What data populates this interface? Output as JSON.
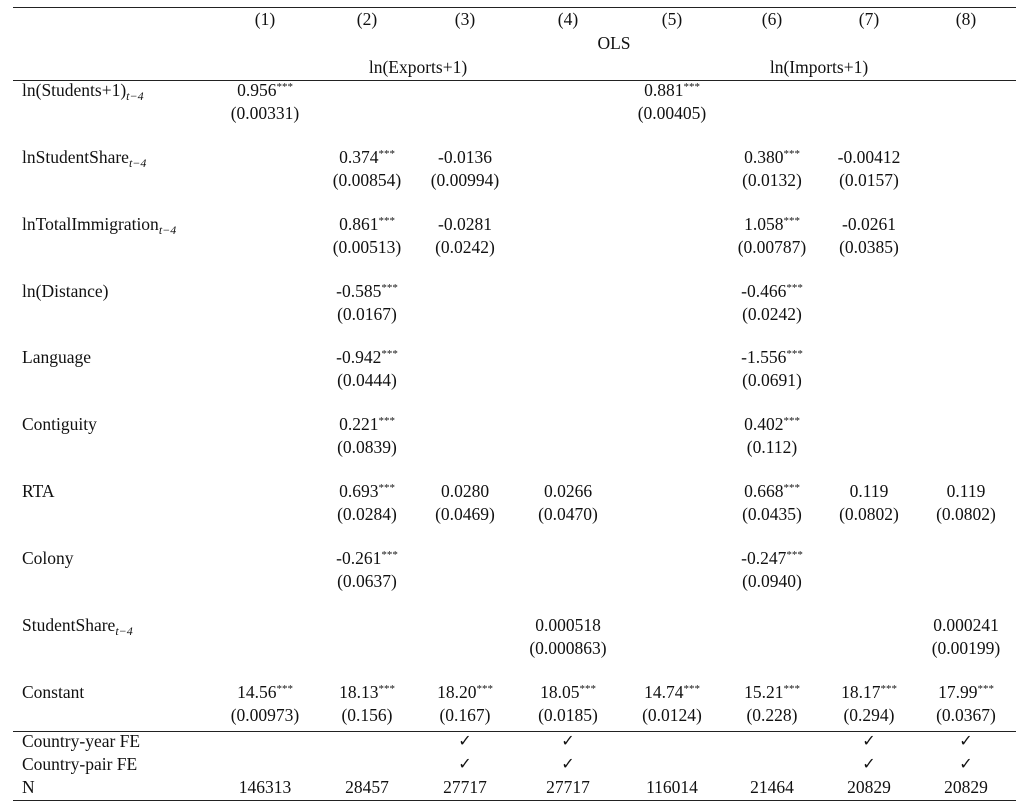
{
  "table": {
    "col_numbers": [
      "(1)",
      "(2)",
      "(3)",
      "(4)",
      "(5)",
      "(6)",
      "(7)",
      "(8)"
    ],
    "method": "OLS",
    "dep_exports": "ln(Exports+1)",
    "dep_imports": "ln(Imports+1)",
    "rows": [
      {
        "label": "ln(Students+1)",
        "label_sub": "t−4",
        "coefs": [
          "0.956",
          "",
          "",
          "",
          "0.881",
          "",
          "",
          ""
        ],
        "stars": [
          "***",
          "",
          "",
          "",
          "***",
          "",
          "",
          ""
        ],
        "ses": [
          "(0.00331)",
          "",
          "",
          "",
          "(0.00405)",
          "",
          "",
          ""
        ]
      },
      {
        "label": "lnStudentShare",
        "label_sub": "t−4",
        "coefs": [
          "",
          "0.374",
          "-0.0136",
          "",
          "",
          "0.380",
          "-0.00412",
          ""
        ],
        "stars": [
          "",
          "***",
          "",
          "",
          "",
          "***",
          "",
          ""
        ],
        "ses": [
          "",
          "(0.00854)",
          "(0.00994)",
          "",
          "",
          "(0.0132)",
          "(0.0157)",
          ""
        ]
      },
      {
        "label": "lnTotalImmigration",
        "label_sub": "t−4",
        "coefs": [
          "",
          "0.861",
          "-0.0281",
          "",
          "",
          "1.058",
          "-0.0261",
          ""
        ],
        "stars": [
          "",
          "***",
          "",
          "",
          "",
          "***",
          "",
          ""
        ],
        "ses": [
          "",
          "(0.00513)",
          "(0.0242)",
          "",
          "",
          "(0.00787)",
          "(0.0385)",
          ""
        ]
      },
      {
        "label": "ln(Distance)",
        "label_sub": "",
        "coefs": [
          "",
          "-0.585",
          "",
          "",
          "",
          "-0.466",
          "",
          ""
        ],
        "stars": [
          "",
          "***",
          "",
          "",
          "",
          "***",
          "",
          ""
        ],
        "ses": [
          "",
          "(0.0167)",
          "",
          "",
          "",
          "(0.0242)",
          "",
          ""
        ]
      },
      {
        "label": "Language",
        "label_sub": "",
        "coefs": [
          "",
          "-0.942",
          "",
          "",
          "",
          "-1.556",
          "",
          ""
        ],
        "stars": [
          "",
          "***",
          "",
          "",
          "",
          "***",
          "",
          ""
        ],
        "ses": [
          "",
          "(0.0444)",
          "",
          "",
          "",
          "(0.0691)",
          "",
          ""
        ]
      },
      {
        "label": "Contiguity",
        "label_sub": "",
        "coefs": [
          "",
          "0.221",
          "",
          "",
          "",
          "0.402",
          "",
          ""
        ],
        "stars": [
          "",
          "***",
          "",
          "",
          "",
          "***",
          "",
          ""
        ],
        "ses": [
          "",
          "(0.0839)",
          "",
          "",
          "",
          "(0.112)",
          "",
          ""
        ]
      },
      {
        "label": "RTA",
        "label_sub": "",
        "coefs": [
          "",
          "0.693",
          "0.0280",
          "0.0266",
          "",
          "0.668",
          "0.119",
          "0.119"
        ],
        "stars": [
          "",
          "***",
          "",
          "",
          "",
          "***",
          "",
          ""
        ],
        "ses": [
          "",
          "(0.0284)",
          "(0.0469)",
          "(0.0470)",
          "",
          "(0.0435)",
          "(0.0802)",
          "(0.0802)"
        ]
      },
      {
        "label": "Colony",
        "label_sub": "",
        "coefs": [
          "",
          "-0.261",
          "",
          "",
          "",
          "-0.247",
          "",
          ""
        ],
        "stars": [
          "",
          "***",
          "",
          "",
          "",
          "***",
          "",
          ""
        ],
        "ses": [
          "",
          "(0.0637)",
          "",
          "",
          "",
          "(0.0940)",
          "",
          ""
        ]
      },
      {
        "label": "StudentShare",
        "label_sub": "t−4",
        "coefs": [
          "",
          "",
          "",
          "0.000518",
          "",
          "",
          "",
          "0.000241"
        ],
        "stars": [
          "",
          "",
          "",
          "",
          "",
          "",
          "",
          ""
        ],
        "ses": [
          "",
          "",
          "",
          "(0.000863)",
          "",
          "",
          "",
          "(0.00199)"
        ]
      },
      {
        "label": "Constant",
        "label_sub": "",
        "coefs": [
          "14.56",
          "18.13",
          "18.20",
          "18.05",
          "14.74",
          "15.21",
          "18.17",
          "17.99"
        ],
        "stars": [
          "***",
          "***",
          "***",
          "***",
          "***",
          "***",
          "***",
          "***"
        ],
        "ses": [
          "(0.00973)",
          "(0.156)",
          "(0.167)",
          "(0.0185)",
          "(0.0124)",
          "(0.228)",
          "(0.294)",
          "(0.0367)"
        ]
      }
    ],
    "footer": [
      {
        "label": "Country-year FE",
        "cells": [
          "",
          "",
          "✓",
          "✓",
          "",
          "",
          "✓",
          "✓"
        ]
      },
      {
        "label": "Country-pair FE",
        "cells": [
          "",
          "",
          "✓",
          "✓",
          "",
          "",
          "✓",
          "✓"
        ]
      },
      {
        "label": "N",
        "cells": [
          "146313",
          "28457",
          "27717",
          "27717",
          "116014",
          "21464",
          "20829",
          "20829"
        ]
      }
    ]
  }
}
